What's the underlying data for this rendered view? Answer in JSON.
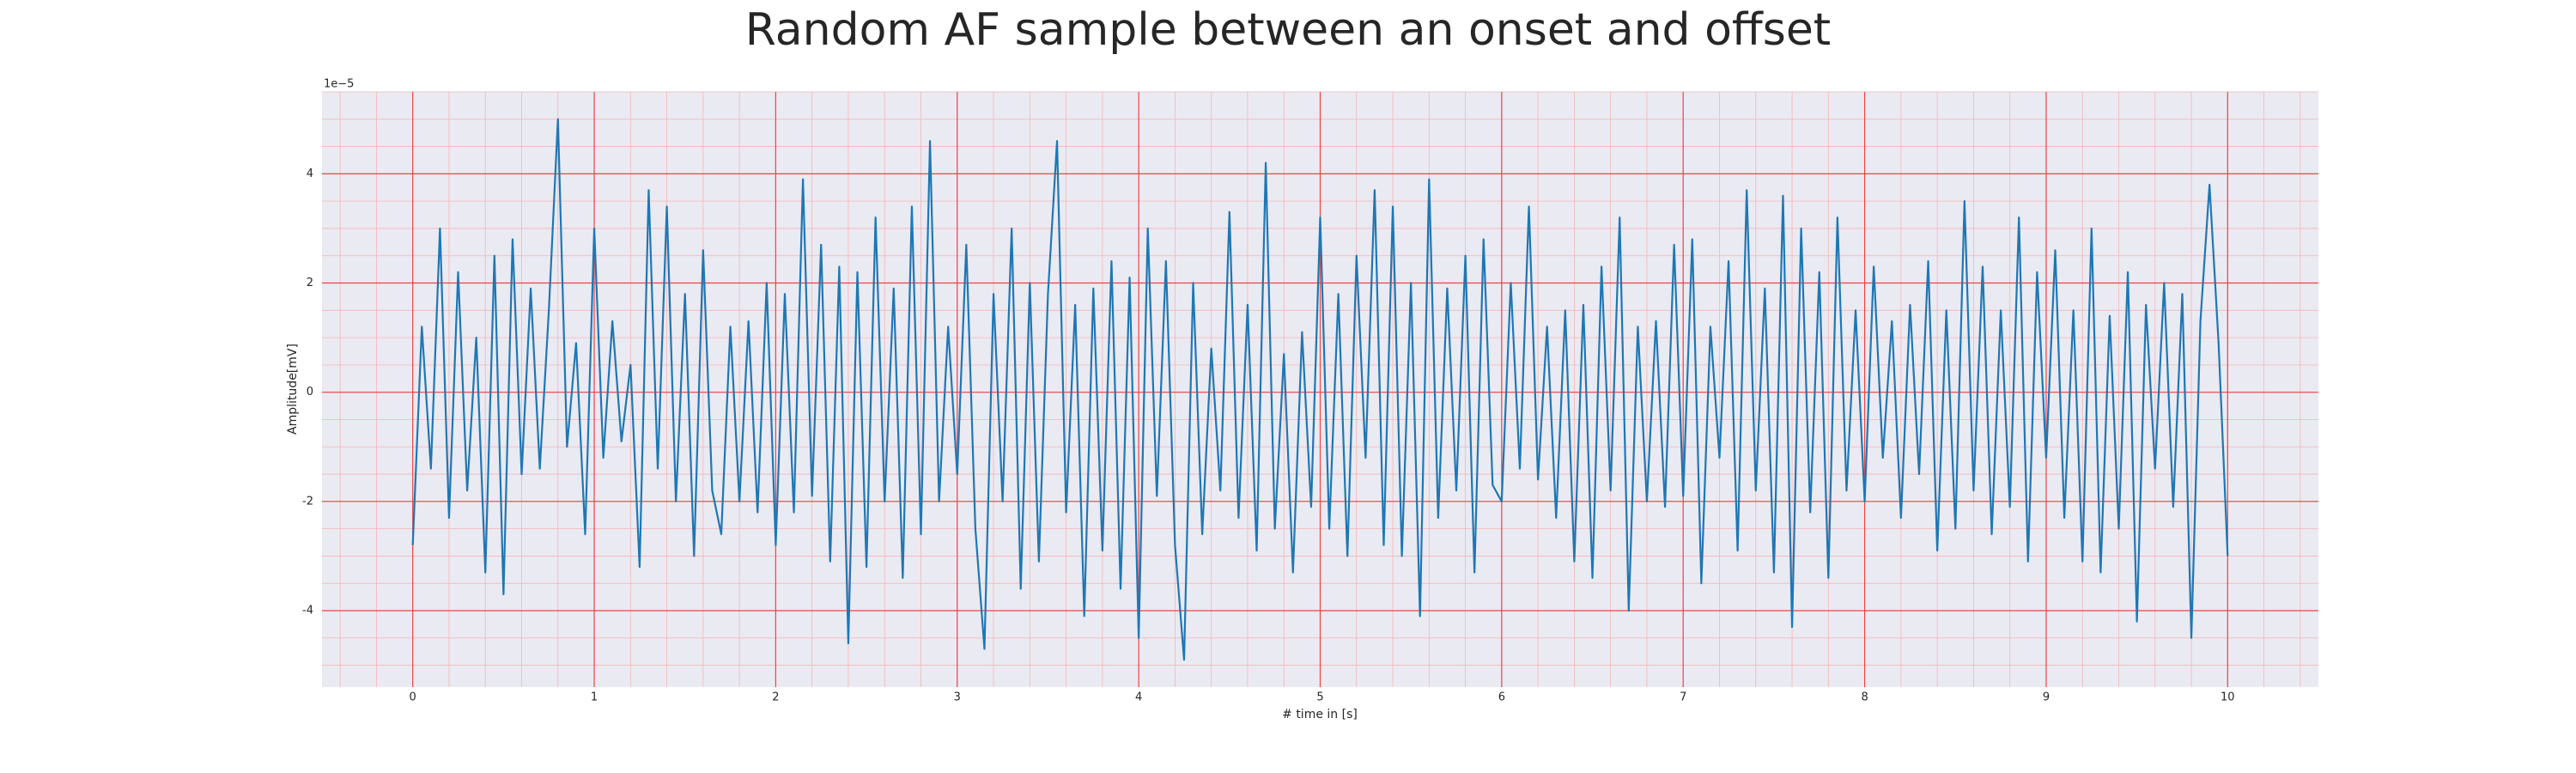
{
  "chart_data": {
    "type": "line",
    "title": "Random AF sample between an onset and offset",
    "x_label": "# time in [s]",
    "y_label": "Amplitude[mV]",
    "y_offset_label": "1e−5",
    "xlim": [
      -0.5,
      10.5
    ],
    "ylim": [
      -5.4,
      5.5
    ],
    "xticks": [
      0,
      1,
      2,
      3,
      4,
      5,
      6,
      7,
      8,
      9,
      10
    ],
    "yticks": [
      -4,
      -2,
      0,
      2,
      4
    ],
    "grid": true,
    "x": [
      0,
      0.05,
      0.1,
      0.15,
      0.2,
      0.25,
      0.3,
      0.35,
      0.4,
      0.45,
      0.5,
      0.55,
      0.6,
      0.65,
      0.7,
      0.75,
      0.8,
      0.85,
      0.9,
      0.95,
      1,
      1.05,
      1.1,
      1.15,
      1.2,
      1.25,
      1.3,
      1.35,
      1.4,
      1.45,
      1.5,
      1.55,
      1.6,
      1.65,
      1.7,
      1.75,
      1.8,
      1.85,
      1.9,
      1.95,
      2,
      2.05,
      2.1,
      2.15,
      2.2,
      2.25,
      2.3,
      2.35,
      2.4,
      2.45,
      2.5,
      2.55,
      2.6,
      2.65,
      2.7,
      2.75,
      2.8,
      2.85,
      2.9,
      2.95,
      3,
      3.05,
      3.1,
      3.15,
      3.2,
      3.25,
      3.3,
      3.35,
      3.4,
      3.45,
      3.5,
      3.55,
      3.6,
      3.65,
      3.7,
      3.75,
      3.8,
      3.85,
      3.9,
      3.95,
      4,
      4.05,
      4.1,
      4.15,
      4.2,
      4.25,
      4.3,
      4.35,
      4.4,
      4.45,
      4.5,
      4.55,
      4.6,
      4.65,
      4.7,
      4.75,
      4.8,
      4.85,
      4.9,
      4.95,
      5,
      5.05,
      5.1,
      5.15,
      5.2,
      5.25,
      5.3,
      5.35,
      5.4,
      5.45,
      5.5,
      5.55,
      5.6,
      5.65,
      5.7,
      5.75,
      5.8,
      5.85,
      5.9,
      5.95,
      6,
      6.05,
      6.1,
      6.15,
      6.2,
      6.25,
      6.3,
      6.35,
      6.4,
      6.45,
      6.5,
      6.55,
      6.6,
      6.65,
      6.7,
      6.75,
      6.8,
      6.85,
      6.9,
      6.95,
      7,
      7.05,
      7.1,
      7.15,
      7.2,
      7.25,
      7.3,
      7.35,
      7.4,
      7.45,
      7.5,
      7.55,
      7.6,
      7.65,
      7.7,
      7.75,
      7.8,
      7.85,
      7.9,
      7.95,
      8,
      8.05,
      8.1,
      8.15,
      8.2,
      8.25,
      8.3,
      8.35,
      8.4,
      8.45,
      8.5,
      8.55,
      8.6,
      8.65,
      8.7,
      8.75,
      8.8,
      8.85,
      8.9,
      8.95,
      9,
      9.05,
      9.1,
      9.15,
      9.2,
      9.25,
      9.3,
      9.35,
      9.4,
      9.45,
      9.5,
      9.55,
      9.6,
      9.65,
      9.7,
      9.75,
      9.8,
      9.85,
      9.9,
      9.95,
      10
    ],
    "series": [
      {
        "color": "#1f77b4",
        "values": [
          -2.8,
          1.2,
          -1.4,
          3.0,
          -2.3,
          2.2,
          -1.8,
          1.0,
          -3.3,
          2.5,
          -3.7,
          2.8,
          -1.5,
          1.9,
          -1.4,
          1.5,
          5.0,
          -1.0,
          0.9,
          -2.6,
          3.0,
          -1.2,
          1.3,
          -0.9,
          0.5,
          -3.2,
          3.7,
          -1.4,
          3.4,
          -2.0,
          1.8,
          -3.0,
          2.6,
          -1.8,
          -2.6,
          1.2,
          -2.0,
          1.3,
          -2.2,
          2.0,
          -2.8,
          1.8,
          -2.2,
          3.9,
          -1.9,
          2.7,
          -3.1,
          2.3,
          -4.6,
          2.2,
          -3.2,
          3.2,
          -2.0,
          1.9,
          -3.4,
          3.4,
          -2.6,
          4.6,
          -2.0,
          1.2,
          -1.5,
          2.7,
          -2.5,
          -4.7,
          1.8,
          -2.0,
          3.0,
          -3.6,
          2.0,
          -3.1,
          1.8,
          4.6,
          -2.2,
          1.6,
          -4.1,
          1.9,
          -2.9,
          2.4,
          -3.6,
          2.1,
          -4.5,
          3.0,
          -1.9,
          2.4,
          -2.8,
          -4.9,
          2.0,
          -2.6,
          0.8,
          -1.8,
          3.3,
          -2.3,
          1.6,
          -2.9,
          4.2,
          -2.5,
          0.7,
          -3.3,
          1.1,
          -2.1,
          3.2,
          -2.5,
          1.8,
          -3.0,
          2.5,
          -1.2,
          3.7,
          -2.8,
          3.4,
          -3.0,
          2.0,
          -4.1,
          3.9,
          -2.3,
          1.9,
          -1.8,
          2.5,
          -3.3,
          2.8,
          -1.7,
          -2.0,
          2.0,
          -1.4,
          3.4,
          -1.6,
          1.2,
          -2.3,
          1.5,
          -3.1,
          1.6,
          -3.4,
          2.3,
          -1.8,
          3.2,
          -4.0,
          1.2,
          -2.0,
          1.3,
          -2.1,
          2.7,
          -1.9,
          2.8,
          -3.5,
          1.2,
          -1.2,
          2.4,
          -2.9,
          3.7,
          -1.8,
          1.9,
          -3.3,
          3.6,
          -4.3,
          3.0,
          -2.2,
          2.2,
          -3.4,
          3.2,
          -1.8,
          1.5,
          -2.0,
          2.3,
          -1.2,
          1.3,
          -2.3,
          1.6,
          -1.5,
          2.4,
          -2.9,
          1.5,
          -2.5,
          3.5,
          -1.8,
          2.3,
          -2.6,
          1.5,
          -2.1,
          3.2,
          -3.1,
          2.2,
          -1.2,
          2.6,
          -2.3,
          1.5,
          -3.1,
          3.0,
          -3.3,
          1.4,
          -2.5,
          2.2,
          -4.2,
          1.6,
          -1.4,
          2.0,
          -2.1,
          1.8,
          -4.5,
          1.3,
          3.8,
          0.9,
          -3.0
        ]
      }
    ]
  }
}
